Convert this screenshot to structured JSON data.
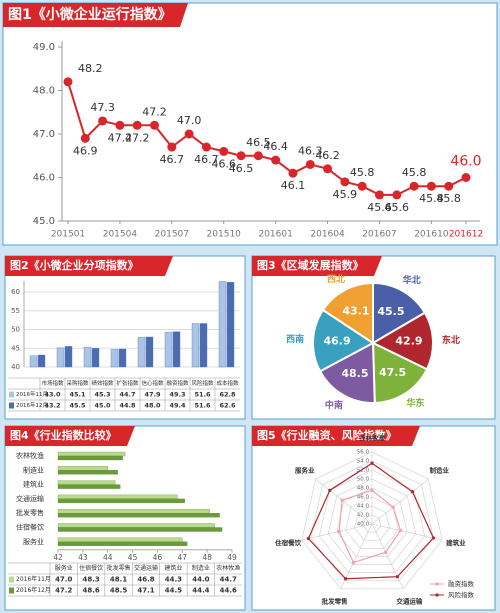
{
  "chart_data": [
    {
      "type": "line",
      "title": "图1《小微企业运行指数》",
      "categories": [
        "201501",
        null,
        null,
        "201504",
        null,
        null,
        "201507",
        null,
        null,
        "201510",
        null,
        null,
        "201601",
        null,
        null,
        "201604",
        null,
        null,
        "201607",
        null,
        null,
        "201610",
        null,
        "201612"
      ],
      "values": [
        48.2,
        46.9,
        47.3,
        47.2,
        47.2,
        47.2,
        46.7,
        47.0,
        46.7,
        46.6,
        46.5,
        46.5,
        46.4,
        46.1,
        46.3,
        46.2,
        45.9,
        45.8,
        45.6,
        45.6,
        45.8,
        45.8,
        45.8,
        46.0
      ],
      "value_labels": [
        "48.2",
        "46.9",
        "47.3",
        "47.2",
        "47.2",
        "47.2",
        "46.7",
        "47.0",
        "46.7",
        "46.6",
        "46.5",
        "46.5",
        "46.4",
        "46.1",
        "46.3",
        "46.2",
        "45.9",
        "45.8",
        "45.6",
        "45.6",
        "45.8",
        "45.8",
        "45.8",
        "46.0"
      ],
      "color": "#d9262a",
      "ylim": [
        45,
        49
      ],
      "yticks": [
        {
          "value": 45,
          "label": "45.0"
        },
        {
          "value": 46,
          "label": "46.0"
        },
        {
          "value": 47,
          "label": "47.0"
        },
        {
          "value": 48,
          "label": "48.0"
        },
        {
          "value": 49,
          "label": "49.0"
        }
      ]
    },
    {
      "type": "bar",
      "title": "图2《小微企业分项指数》",
      "categories": [
        "市场指数",
        "采购指数",
        "绩效指数",
        "扩张指数",
        "信心指数",
        "融资指数",
        "风险指数",
        "成本指数"
      ],
      "series": [
        {
          "name": "2016年11月",
          "color": "#aac4e6",
          "values": [
            43.0,
            45.1,
            45.3,
            44.7,
            47.9,
            49.3,
            51.6,
            62.8
          ],
          "value_labels": [
            "43.0",
            "45.1",
            "45.3",
            "44.7",
            "47.9",
            "49.3",
            "51.6",
            "62.8"
          ]
        },
        {
          "name": "2016年12月",
          "color": "#4a6cb0",
          "values": [
            43.2,
            45.5,
            45.0,
            44.8,
            48.0,
            49.4,
            51.6,
            62.6
          ],
          "value_labels": [
            "43.2",
            "45.5",
            "45.0",
            "44.8",
            "48.0",
            "49.4",
            "51.6",
            "62.6"
          ]
        }
      ],
      "ylim": [
        40,
        63
      ],
      "yticks": [
        40,
        45,
        50,
        55,
        60
      ],
      "grid": true,
      "table": true
    },
    {
      "type": "pie",
      "title": "图3《区域发展指数》",
      "categories": [
        "华北",
        "东北",
        "华东",
        "中南",
        "西南",
        "西北"
      ],
      "values": [
        45.5,
        42.9,
        47.5,
        48.5,
        46.9,
        43.1
      ],
      "colors": [
        "#4a5fa8",
        "#b0262e",
        "#7fb23a",
        "#7e5aa0",
        "#3aa0c0",
        "#f0a030"
      ]
    },
    {
      "type": "bar",
      "orientation": "horizontal",
      "title": "图4《行业指数比较》",
      "categories": [
        "服务业",
        "住宿餐饮",
        "批发零售",
        "交通运输",
        "建筑业",
        "制造业",
        "农林牧渔"
      ],
      "series": [
        {
          "name": "2016年11月",
          "color": "#b9d98f",
          "values": [
            47.0,
            48.3,
            48.1,
            46.8,
            44.3,
            44.0,
            44.7
          ],
          "value_labels": [
            "47.0",
            "48.3",
            "48.1",
            "46.8",
            "44.3",
            "44.0",
            "44.7"
          ]
        },
        {
          "name": "2016年12月",
          "color": "#6a9a3a",
          "values": [
            47.2,
            48.6,
            48.5,
            47.1,
            44.5,
            44.4,
            44.6
          ],
          "value_labels": [
            "47.2",
            "48.6",
            "48.5",
            "47.1",
            "44.5",
            "44.4",
            "44.6"
          ]
        }
      ],
      "xlim": [
        42,
        49
      ],
      "xticks": [
        42,
        43,
        44,
        45,
        46,
        47,
        48,
        49
      ],
      "table": true
    },
    {
      "type": "radar",
      "title": "图5《行业融资、风险指数》",
      "categories": [
        "农林牧渔",
        "制造业",
        "建筑业",
        "交通运输",
        "批发零售",
        "住宿餐饮",
        "服务业"
      ],
      "series": [
        {
          "name": "融资指数",
          "color": "#f0a0a8",
          "values": [
            47.5,
            46.0,
            46.5,
            47.0,
            49.5,
            47.5,
            48.5
          ]
        },
        {
          "name": "风险指数",
          "color": "#b0262e",
          "values": [
            53.5,
            51.5,
            54.0,
            53.0,
            53.5,
            54.5,
            52.0
          ]
        }
      ],
      "ylim": [
        40,
        56
      ],
      "yticks": [
        {
          "value": 40,
          "label": "40.0"
        },
        {
          "value": 42,
          "label": "42.0"
        },
        {
          "value": 44,
          "label": "44.0"
        },
        {
          "value": 46,
          "label": "46.0"
        },
        {
          "value": 48,
          "label": "48.0"
        },
        {
          "value": 50,
          "label": "50.0"
        },
        {
          "value": 52,
          "label": "52.0"
        },
        {
          "value": 54,
          "label": "54.0"
        },
        {
          "value": 56,
          "label": "56.0"
        }
      ],
      "legend": "lower right"
    }
  ]
}
